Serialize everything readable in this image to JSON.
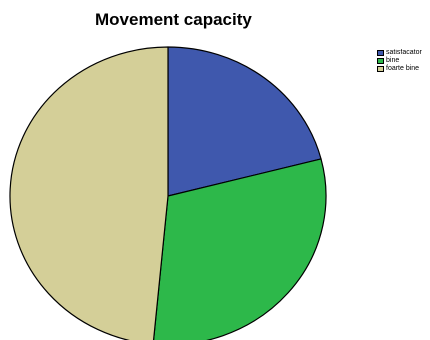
{
  "chart_data": {
    "type": "pie",
    "title": "Movement capacity",
    "categories": [
      "satisfacator",
      "bine",
      "foarte bine"
    ],
    "values": [
      21.0,
      30.5,
      48.5
    ],
    "colors": [
      "#3f58ad",
      "#2db84a",
      "#d4cf98"
    ],
    "start_angle_deg": 0,
    "direction": "clockwise",
    "legend_position": "top-right"
  }
}
